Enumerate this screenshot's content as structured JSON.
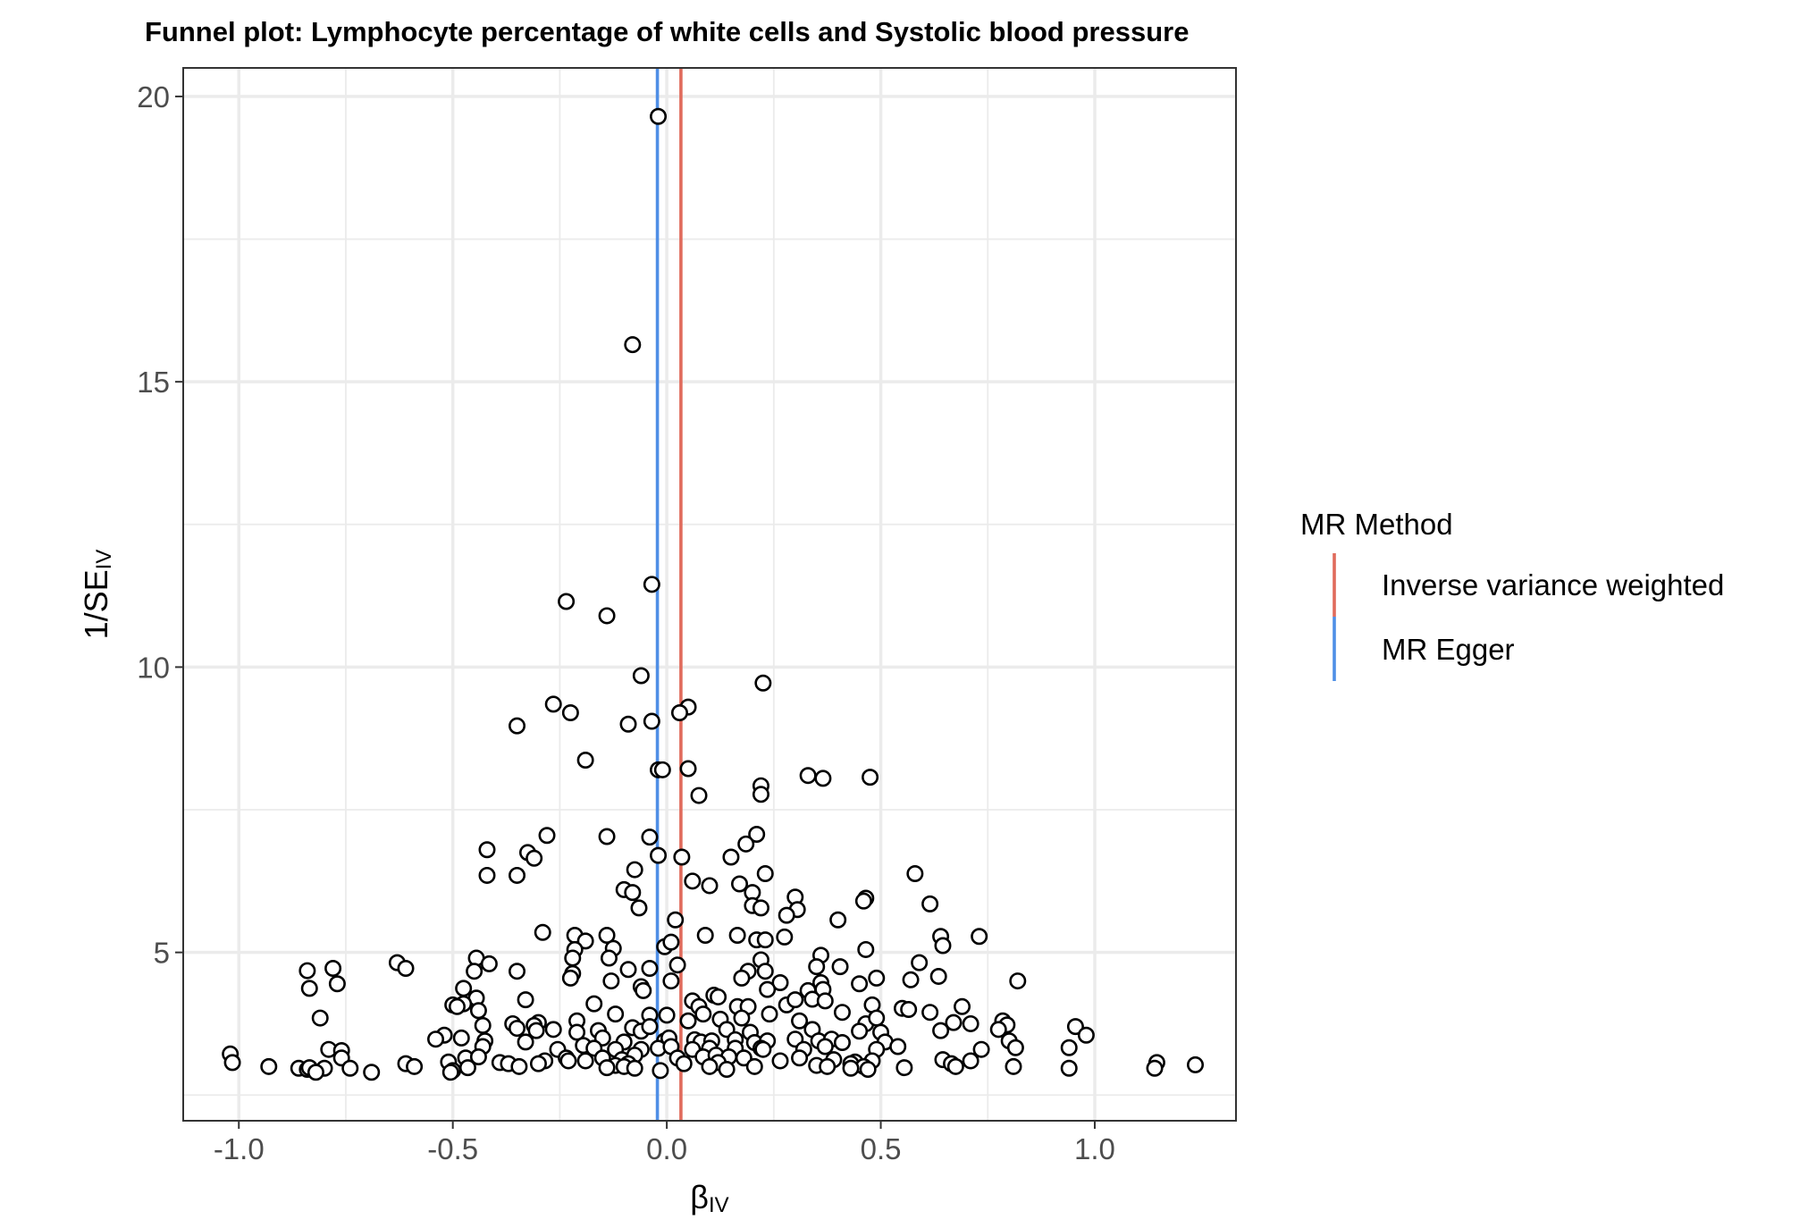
{
  "chart_data": {
    "type": "scatter",
    "title": "Funnel plot: Lymphocyte percentage of white cells and Systolic blood pressure",
    "xlabel": {
      "main": "β",
      "sub": "IV"
    },
    "ylabel": {
      "main": "1/SE",
      "sub": "IV"
    },
    "xlim": [
      -1.13,
      1.33
    ],
    "ylim": [
      2.05,
      20.5
    ],
    "x_ticks": [
      -1.0,
      -0.5,
      0.0,
      0.5,
      1.0
    ],
    "x_tick_labels": [
      "-1.0",
      "-0.5",
      "0.0",
      "0.5",
      "1.0"
    ],
    "y_ticks": [
      5,
      10,
      15,
      20
    ],
    "y_tick_labels": [
      "5",
      "10",
      "15",
      "20"
    ],
    "grid": true,
    "legend": {
      "title": "MR Method",
      "placement": "right",
      "entries": [
        {
          "label": "Inverse variance weighted",
          "color": "#E06B5C"
        },
        {
          "label": "MR Egger",
          "color": "#4F8FE6"
        }
      ]
    },
    "vlines": [
      {
        "name": "Inverse variance weighted",
        "x": 0.033,
        "color": "#E06B5C"
      },
      {
        "name": "MR Egger",
        "x": -0.022,
        "color": "#4F8FE6"
      }
    ],
    "points": [
      [
        -0.02,
        19.65
      ],
      [
        -0.08,
        15.65
      ],
      [
        -0.035,
        11.45
      ],
      [
        -0.235,
        11.15
      ],
      [
        -0.14,
        10.9
      ],
      [
        -0.06,
        9.85
      ],
      [
        0.225,
        9.72
      ],
      [
        -0.265,
        9.35
      ],
      [
        0.05,
        9.3
      ],
      [
        -0.225,
        9.2
      ],
      [
        0.03,
        9.2
      ],
      [
        -0.035,
        9.05
      ],
      [
        -0.09,
        9.0
      ],
      [
        -0.35,
        8.97
      ],
      [
        -0.19,
        8.37
      ],
      [
        -0.02,
        8.2
      ],
      [
        -0.01,
        8.2
      ],
      [
        0.05,
        8.22
      ],
      [
        0.33,
        8.1
      ],
      [
        0.365,
        8.05
      ],
      [
        0.475,
        8.07
      ],
      [
        0.22,
        7.92
      ],
      [
        0.22,
        7.77
      ],
      [
        0.075,
        7.75
      ],
      [
        -0.28,
        7.05
      ],
      [
        -0.14,
        7.03
      ],
      [
        -0.04,
        7.02
      ],
      [
        0.21,
        7.07
      ],
      [
        0.185,
        6.9
      ],
      [
        -0.42,
        6.8
      ],
      [
        -0.325,
        6.75
      ],
      [
        -0.02,
        6.7
      ],
      [
        0.035,
        6.67
      ],
      [
        0.15,
        6.67
      ],
      [
        -0.31,
        6.65
      ],
      [
        -0.075,
        6.45
      ],
      [
        -0.42,
        6.35
      ],
      [
        -0.35,
        6.35
      ],
      [
        0.23,
        6.38
      ],
      [
        0.58,
        6.38
      ],
      [
        0.06,
        6.25
      ],
      [
        0.1,
        6.17
      ],
      [
        0.17,
        6.2
      ],
      [
        -0.1,
        6.1
      ],
      [
        -0.08,
        6.05
      ],
      [
        0.2,
        6.05
      ],
      [
        0.3,
        5.97
      ],
      [
        0.465,
        5.95
      ],
      [
        0.46,
        5.9
      ],
      [
        0.2,
        5.82
      ],
      [
        -0.065,
        5.78
      ],
      [
        0.22,
        5.78
      ],
      [
        0.305,
        5.75
      ],
      [
        0.615,
        5.85
      ],
      [
        0.28,
        5.65
      ],
      [
        0.02,
        5.57
      ],
      [
        0.4,
        5.57
      ],
      [
        -0.29,
        5.35
      ],
      [
        -0.215,
        5.3
      ],
      [
        -0.14,
        5.3
      ],
      [
        0.09,
        5.3
      ],
      [
        0.165,
        5.3
      ],
      [
        0.21,
        5.22
      ],
      [
        0.23,
        5.22
      ],
      [
        0.275,
        5.27
      ],
      [
        0.64,
        5.28
      ],
      [
        0.73,
        5.28
      ],
      [
        -0.19,
        5.2
      ],
      [
        -0.005,
        5.1
      ],
      [
        0.01,
        5.18
      ],
      [
        0.645,
        5.12
      ],
      [
        -0.215,
        5.05
      ],
      [
        -0.125,
        5.07
      ],
      [
        0.465,
        5.05
      ],
      [
        -0.445,
        4.9
      ],
      [
        -0.22,
        4.9
      ],
      [
        0.22,
        4.87
      ],
      [
        0.36,
        4.95
      ],
      [
        -0.415,
        4.8
      ],
      [
        -0.135,
        4.9
      ],
      [
        0.025,
        4.78
      ],
      [
        0.35,
        4.75
      ],
      [
        0.405,
        4.75
      ],
      [
        0.59,
        4.82
      ],
      [
        -0.84,
        4.68
      ],
      [
        -0.78,
        4.72
      ],
      [
        -0.63,
        4.82
      ],
      [
        -0.61,
        4.72
      ],
      [
        -0.45,
        4.67
      ],
      [
        -0.35,
        4.67
      ],
      [
        -0.22,
        4.63
      ],
      [
        -0.09,
        4.7
      ],
      [
        -0.04,
        4.72
      ],
      [
        0.19,
        4.67
      ],
      [
        0.23,
        4.67
      ],
      [
        0.49,
        4.55
      ],
      [
        -0.225,
        4.55
      ],
      [
        -0.13,
        4.5
      ],
      [
        0.01,
        4.5
      ],
      [
        0.175,
        4.55
      ],
      [
        0.265,
        4.47
      ],
      [
        0.36,
        4.47
      ],
      [
        0.45,
        4.45
      ],
      [
        0.57,
        4.52
      ],
      [
        0.635,
        4.58
      ],
      [
        0.82,
        4.5
      ],
      [
        -0.77,
        4.45
      ],
      [
        -0.835,
        4.37
      ],
      [
        -0.475,
        4.37
      ],
      [
        -0.06,
        4.4
      ],
      [
        -0.055,
        4.33
      ],
      [
        0.33,
        4.33
      ],
      [
        0.235,
        4.35
      ],
      [
        0.365,
        4.35
      ],
      [
        -0.445,
        4.2
      ],
      [
        -0.33,
        4.17
      ],
      [
        -0.17,
        4.1
      ],
      [
        0.06,
        4.15
      ],
      [
        0.075,
        4.05
      ],
      [
        0.11,
        4.25
      ],
      [
        0.12,
        4.22
      ],
      [
        0.165,
        4.05
      ],
      [
        0.19,
        4.05
      ],
      [
        0.28,
        4.08
      ],
      [
        0.3,
        4.17
      ],
      [
        0.34,
        4.18
      ],
      [
        0.37,
        4.15
      ],
      [
        0.48,
        4.08
      ],
      [
        0.55,
        4.02
      ],
      [
        0.565,
        4.0
      ],
      [
        0.69,
        4.05
      ],
      [
        -0.475,
        4.1
      ],
      [
        -0.5,
        4.08
      ],
      [
        -0.49,
        4.05
      ],
      [
        -0.44,
        3.98
      ],
      [
        -0.12,
        3.92
      ],
      [
        -0.04,
        3.9
      ],
      [
        0.0,
        3.9
      ],
      [
        0.085,
        3.92
      ],
      [
        0.24,
        3.92
      ],
      [
        0.41,
        3.95
      ],
      [
        0.615,
        3.95
      ],
      [
        -0.81,
        3.85
      ],
      [
        -0.36,
        3.75
      ],
      [
        -0.3,
        3.77
      ],
      [
        -0.21,
        3.8
      ],
      [
        0.05,
        3.8
      ],
      [
        0.125,
        3.83
      ],
      [
        0.175,
        3.85
      ],
      [
        0.31,
        3.8
      ],
      [
        0.465,
        3.75
      ],
      [
        0.49,
        3.85
      ],
      [
        0.67,
        3.77
      ],
      [
        0.71,
        3.75
      ],
      [
        0.785,
        3.8
      ],
      [
        0.795,
        3.73
      ],
      [
        -0.43,
        3.72
      ],
      [
        -0.35,
        3.67
      ],
      [
        -0.31,
        3.72
      ],
      [
        -0.305,
        3.63
      ],
      [
        -0.265,
        3.65
      ],
      [
        -0.21,
        3.6
      ],
      [
        -0.16,
        3.63
      ],
      [
        -0.08,
        3.68
      ],
      [
        -0.06,
        3.62
      ],
      [
        -0.04,
        3.7
      ],
      [
        0.14,
        3.65
      ],
      [
        0.195,
        3.6
      ],
      [
        0.34,
        3.65
      ],
      [
        0.45,
        3.62
      ],
      [
        0.5,
        3.6
      ],
      [
        0.64,
        3.63
      ],
      [
        0.775,
        3.65
      ],
      [
        0.955,
        3.7
      ],
      [
        -0.52,
        3.55
      ],
      [
        -0.54,
        3.48
      ],
      [
        -0.48,
        3.5
      ],
      [
        -0.425,
        3.45
      ],
      [
        -0.33,
        3.43
      ],
      [
        -0.15,
        3.5
      ],
      [
        -0.1,
        3.43
      ],
      [
        -0.005,
        3.45
      ],
      [
        0.005,
        3.5
      ],
      [
        0.065,
        3.47
      ],
      [
        0.08,
        3.43
      ],
      [
        0.105,
        3.45
      ],
      [
        0.16,
        3.47
      ],
      [
        0.205,
        3.42
      ],
      [
        0.235,
        3.45
      ],
      [
        0.3,
        3.48
      ],
      [
        0.355,
        3.45
      ],
      [
        0.385,
        3.48
      ],
      [
        0.41,
        3.42
      ],
      [
        0.51,
        3.43
      ],
      [
        0.98,
        3.55
      ],
      [
        0.8,
        3.45
      ],
      [
        -0.79,
        3.3
      ],
      [
        -0.76,
        3.28
      ],
      [
        -0.43,
        3.35
      ],
      [
        -0.255,
        3.3
      ],
      [
        -0.195,
        3.37
      ],
      [
        -0.17,
        3.32
      ],
      [
        -0.12,
        3.3
      ],
      [
        -0.06,
        3.3
      ],
      [
        -0.02,
        3.32
      ],
      [
        0.01,
        3.35
      ],
      [
        0.06,
        3.3
      ],
      [
        0.1,
        3.32
      ],
      [
        0.16,
        3.32
      ],
      [
        0.22,
        3.32
      ],
      [
        0.225,
        3.3
      ],
      [
        0.32,
        3.3
      ],
      [
        0.37,
        3.35
      ],
      [
        0.49,
        3.3
      ],
      [
        0.54,
        3.35
      ],
      [
        0.735,
        3.3
      ],
      [
        0.815,
        3.33
      ],
      [
        0.94,
        3.33
      ],
      [
        -1.02,
        3.22
      ],
      [
        -0.47,
        3.15
      ],
      [
        -0.44,
        3.17
      ],
      [
        -0.285,
        3.1
      ],
      [
        -0.235,
        3.15
      ],
      [
        -0.19,
        3.1
      ],
      [
        -0.15,
        3.15
      ],
      [
        -0.105,
        3.12
      ],
      [
        -0.075,
        3.2
      ],
      [
        0.025,
        3.15
      ],
      [
        0.085,
        3.17
      ],
      [
        0.115,
        3.2
      ],
      [
        0.145,
        3.17
      ],
      [
        0.18,
        3.15
      ],
      [
        0.265,
        3.1
      ],
      [
        0.31,
        3.15
      ],
      [
        0.39,
        3.12
      ],
      [
        0.44,
        3.08
      ],
      [
        0.48,
        3.1
      ],
      [
        0.645,
        3.12
      ],
      [
        0.71,
        3.1
      ],
      [
        -1.015,
        3.07
      ],
      [
        -0.76,
        3.15
      ],
      [
        -0.61,
        3.05
      ],
      [
        -0.51,
        3.08
      ],
      [
        -0.39,
        3.07
      ],
      [
        -0.37,
        3.05
      ],
      [
        -0.3,
        3.05
      ],
      [
        -0.23,
        3.1
      ],
      [
        -0.12,
        3.02
      ],
      [
        -0.09,
        3.05
      ],
      [
        0.04,
        3.05
      ],
      [
        0.12,
        3.07
      ],
      [
        0.35,
        3.02
      ],
      [
        0.43,
        3.05
      ],
      [
        0.665,
        3.05
      ],
      [
        1.145,
        3.07
      ],
      [
        1.235,
        3.03
      ],
      [
        -0.93,
        3.0
      ],
      [
        -0.86,
        2.97
      ],
      [
        -0.84,
        2.95
      ],
      [
        -0.835,
        2.98
      ],
      [
        -0.8,
        2.97
      ],
      [
        -0.74,
        2.97
      ],
      [
        -0.69,
        2.9
      ],
      [
        -0.59,
        3.0
      ],
      [
        -0.5,
        2.93
      ],
      [
        -0.465,
        2.98
      ],
      [
        -0.345,
        3.0
      ],
      [
        -0.14,
        2.98
      ],
      [
        -0.1,
        3.0
      ],
      [
        -0.075,
        2.97
      ],
      [
        -0.015,
        2.93
      ],
      [
        0.1,
        3.0
      ],
      [
        0.14,
        2.95
      ],
      [
        0.205,
        3.0
      ],
      [
        0.375,
        3.0
      ],
      [
        0.46,
        3.0
      ],
      [
        0.47,
        2.95
      ],
      [
        0.555,
        2.98
      ],
      [
        0.675,
        3.0
      ],
      [
        0.81,
        3.0
      ],
      [
        0.94,
        2.97
      ],
      [
        1.14,
        2.97
      ],
      [
        -0.82,
        2.9
      ],
      [
        -0.505,
        2.9
      ],
      [
        0.43,
        2.97
      ]
    ]
  }
}
